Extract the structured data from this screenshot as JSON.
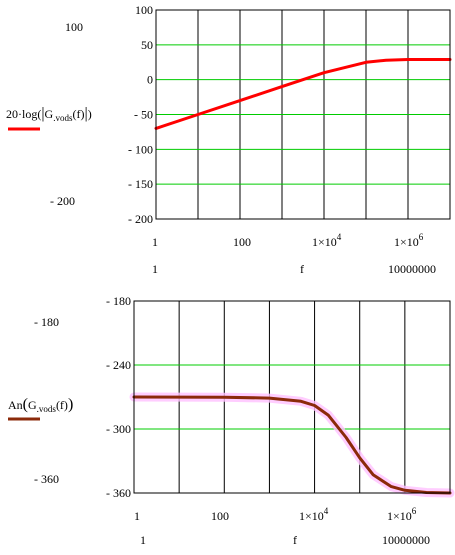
{
  "chart_data": [
    {
      "type": "line",
      "title": "",
      "xlabel": "f",
      "x_scale": "log",
      "xlim": [
        1,
        10000000
      ],
      "ylim": [
        -200,
        100
      ],
      "y_ticks": [
        100,
        50,
        0,
        -50,
        -100,
        -150,
        -200
      ],
      "y_tick_labels": [
        "100",
        "50",
        "0",
        "- 50",
        "- 100",
        "- 150",
        "- 200"
      ],
      "side_tick_labels": [
        "100",
        "- 200"
      ],
      "x_tick_labels": [
        "1",
        "100",
        "1×10^4",
        "1×10^6"
      ],
      "x_range_labels": [
        "1",
        "10000000"
      ],
      "grid": true,
      "legend": {
        "position": "left",
        "expr_prefix": "20·log",
        "func": "G",
        "subscript": ".vods",
        "arg": "(f)"
      },
      "series": [
        {
          "color": "#ff0000",
          "x": [
            1,
            10,
            100,
            1000,
            10000,
            100000,
            300000,
            1000000,
            3000000,
            10000000
          ],
          "y": [
            -70,
            -50,
            -30,
            -10,
            10,
            25,
            28,
            29,
            29,
            29
          ]
        }
      ]
    },
    {
      "type": "line",
      "title": "",
      "xlabel": "f",
      "x_scale": "log",
      "xlim": [
        1,
        10000000
      ],
      "ylim": [
        -360,
        -180
      ],
      "y_ticks": [
        -180,
        -240,
        -300,
        -360
      ],
      "y_tick_labels": [
        "- 180",
        "- 240",
        "- 300",
        "- 360"
      ],
      "side_tick_labels": [
        "- 180",
        "- 360"
      ],
      "x_tick_labels": [
        "1",
        "100",
        "1×10^4",
        "1×10^6"
      ],
      "x_range_labels": [
        "1",
        "10000000"
      ],
      "grid": true,
      "legend": {
        "position": "left",
        "expr_prefix": "An",
        "func": "G",
        "subscript": ".vods",
        "arg": "(f)"
      },
      "series": [
        {
          "color": "#8b2a0a",
          "x": [
            1,
            100,
            1000,
            5000,
            10000,
            20000,
            50000,
            100000,
            200000,
            500000,
            1000000,
            3000000,
            10000000
          ],
          "y": [
            -270,
            -270.2,
            -271,
            -274,
            -278,
            -287,
            -308,
            -327,
            -343,
            -354,
            -357.5,
            -359.5,
            -360
          ]
        }
      ]
    }
  ],
  "colors": {
    "grid_h": "#00cc00",
    "grid_v": "#000000",
    "highlight": "#ffc0ff"
  }
}
